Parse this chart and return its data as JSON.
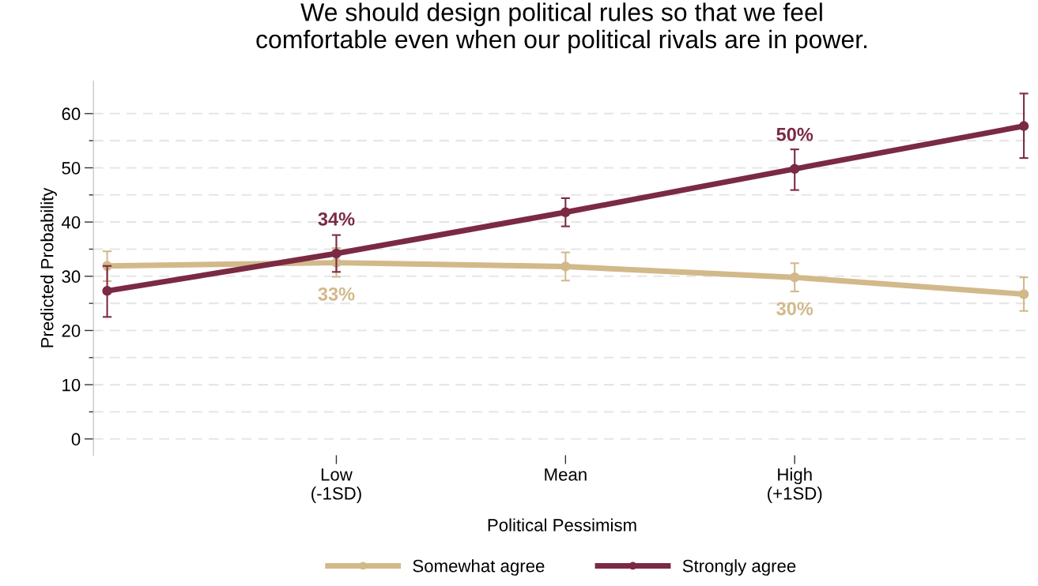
{
  "chart_data": {
    "type": "line",
    "title": "We should design political rules so that we feel\ncomfortable even when our political rivals are in power.",
    "xlabel": "Political Pessimism",
    "ylabel": "Predicted Probability",
    "x": [
      -2,
      -1,
      0,
      1,
      2
    ],
    "xlim": [
      -2.06,
      2.03
    ],
    "xticks": [
      {
        "value": -1,
        "label": "Low\n(-1SD)"
      },
      {
        "value": 0,
        "label": "Mean"
      },
      {
        "value": 1,
        "label": "High\n(+1SD)"
      }
    ],
    "ylim": [
      -3,
      66
    ],
    "yticks": [
      0,
      {
        "value": 5,
        "label": null
      },
      10,
      {
        "value": 15,
        "label": null
      },
      20,
      {
        "value": 25,
        "label": null
      },
      30,
      {
        "value": 35,
        "label": null
      },
      40,
      {
        "value": 45,
        "label": null
      },
      50,
      {
        "value": 55,
        "label": null
      },
      60
    ],
    "series": [
      {
        "name": "Somewhat agree",
        "color": "#d2b98a",
        "values": [
          31.9,
          32.5,
          31.8,
          29.8,
          26.7
        ],
        "errors": [
          [
            29.1,
            34.6
          ],
          [
            29.9,
            35.2
          ],
          [
            29.2,
            34.4
          ],
          [
            27.2,
            32.4
          ],
          [
            23.6,
            29.8
          ]
        ],
        "value_labels": [
          null,
          "33%",
          null,
          "30%",
          null
        ]
      },
      {
        "name": "Strongly agree",
        "color": "#7b2a43",
        "values": [
          27.3,
          34.2,
          41.8,
          49.8,
          57.7
        ],
        "errors": [
          [
            22.5,
            31.9
          ],
          [
            30.8,
            37.6
          ],
          [
            39.2,
            44.4
          ],
          [
            45.9,
            53.4
          ],
          [
            51.8,
            63.7
          ]
        ],
        "value_labels": [
          null,
          "34%",
          null,
          "50%",
          null
        ]
      }
    ],
    "grid": "y",
    "legend": "bottom",
    "marker": "circle",
    "line_style": "solid"
  }
}
